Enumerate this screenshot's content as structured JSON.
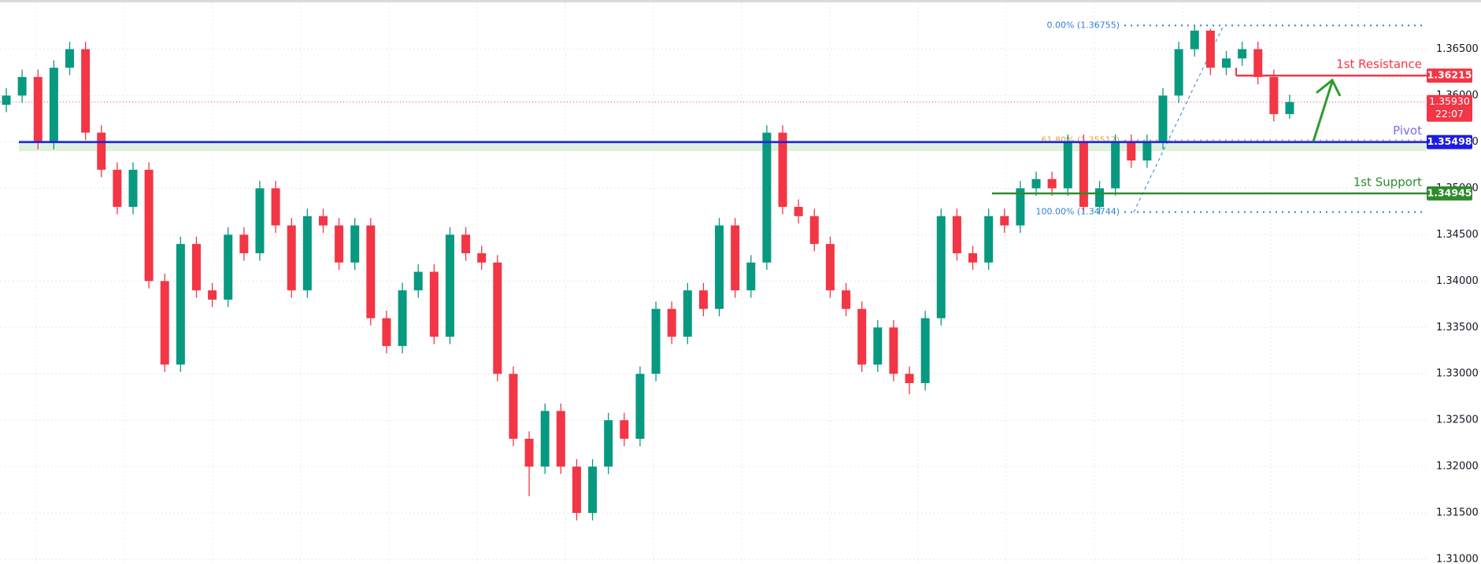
{
  "chart_data": {
    "type": "candlestick",
    "up_color": "#089981",
    "down_color": "#f23645",
    "ylim": [
      1.3095,
      1.3703
    ],
    "yticks": [
      {
        "value": 1.31,
        "label": "1.31000"
      },
      {
        "value": 1.315,
        "label": "1.31500"
      },
      {
        "value": 1.32,
        "label": "1.32000"
      },
      {
        "value": 1.325,
        "label": "1.32500"
      },
      {
        "value": 1.33,
        "label": "1.33000"
      },
      {
        "value": 1.335,
        "label": "1.33500"
      },
      {
        "value": 1.34,
        "label": "1.34000"
      },
      {
        "value": 1.345,
        "label": "1.34500"
      },
      {
        "value": 1.35,
        "label": "1.35000"
      },
      {
        "value": 1.355,
        "label": "1.35500"
      },
      {
        "value": 1.36,
        "label": "1.36000"
      },
      {
        "value": 1.365,
        "label": "1.36500"
      }
    ],
    "grid": true,
    "open": [
      1.359,
      1.36,
      1.362,
      1.355,
      1.363,
      1.365,
      1.356,
      1.352,
      1.348,
      1.352,
      1.34,
      1.331,
      1.344,
      1.339,
      1.338,
      1.345,
      1.343,
      1.35,
      1.346,
      1.339,
      1.347,
      1.346,
      1.342,
      1.346,
      1.336,
      1.333,
      1.339,
      1.341,
      1.334,
      1.345,
      1.343,
      1.342,
      1.33,
      1.323,
      1.32,
      1.326,
      1.32,
      1.315,
      1.32,
      1.325,
      1.323,
      1.33,
      1.337,
      1.334,
      1.339,
      1.337,
      1.346,
      1.339,
      1.342,
      1.356,
      1.348,
      1.347,
      1.344,
      1.339,
      1.337,
      1.331,
      1.335,
      1.33,
      1.329,
      1.336,
      1.347,
      1.343,
      1.342,
      1.347,
      1.346,
      1.35,
      1.351,
      1.35,
      1.355,
      1.348,
      1.35,
      1.355,
      1.353,
      1.355,
      1.36,
      1.365,
      1.367,
      1.363,
      1.364,
      1.365,
      1.362,
      1.358
    ],
    "high": [
      1.3608,
      1.3628,
      1.3628,
      1.3638,
      1.3658,
      1.3658,
      1.3568,
      1.3528,
      1.3528,
      1.3528,
      1.3408,
      1.3448,
      1.3448,
      1.3398,
      1.3458,
      1.3458,
      1.3508,
      1.3508,
      1.3468,
      1.3478,
      1.3478,
      1.3468,
      1.3468,
      1.3468,
      1.3368,
      1.3398,
      1.3418,
      1.3418,
      1.3458,
      1.3458,
      1.3438,
      1.3428,
      1.3308,
      1.3238,
      1.3268,
      1.3268,
      1.3208,
      1.3208,
      1.3258,
      1.3258,
      1.3308,
      1.3378,
      1.3378,
      1.3398,
      1.3398,
      1.3468,
      1.3468,
      1.3428,
      1.3568,
      1.3568,
      1.3488,
      1.3478,
      1.3448,
      1.3398,
      1.3378,
      1.3358,
      1.3358,
      1.3308,
      1.3368,
      1.3478,
      1.3478,
      1.3438,
      1.3478,
      1.3478,
      1.3508,
      1.3518,
      1.3518,
      1.3558,
      1.3558,
      1.3508,
      1.3558,
      1.3558,
      1.3558,
      1.3608,
      1.3658,
      1.36755,
      1.3672,
      1.3648,
      1.3658,
      1.3658,
      1.3628,
      1.3601
    ],
    "low": [
      1.3582,
      1.3592,
      1.3542,
      1.3542,
      1.3622,
      1.3552,
      1.3512,
      1.3472,
      1.3472,
      1.3392,
      1.3302,
      1.3302,
      1.3382,
      1.3372,
      1.3372,
      1.3422,
      1.3422,
      1.3452,
      1.3382,
      1.3382,
      1.3452,
      1.3412,
      1.3412,
      1.3352,
      1.3322,
      1.3322,
      1.3382,
      1.3332,
      1.3332,
      1.3422,
      1.3412,
      1.3292,
      1.3222,
      1.3168,
      1.3192,
      1.3192,
      1.3142,
      1.3142,
      1.3192,
      1.3222,
      1.3222,
      1.3292,
      1.3332,
      1.3332,
      1.3362,
      1.3362,
      1.3382,
      1.3382,
      1.3412,
      1.3472,
      1.3462,
      1.3432,
      1.3382,
      1.3362,
      1.3302,
      1.3302,
      1.3292,
      1.3278,
      1.3282,
      1.3352,
      1.3422,
      1.3412,
      1.3412,
      1.3452,
      1.3452,
      1.3492,
      1.3492,
      1.3492,
      1.34744,
      1.3472,
      1.3492,
      1.3522,
      1.3522,
      1.3542,
      1.3592,
      1.3642,
      1.3622,
      1.3622,
      1.3632,
      1.3612,
      1.3572,
      1.3575
    ],
    "close": [
      1.36,
      1.362,
      1.355,
      1.363,
      1.365,
      1.356,
      1.352,
      1.348,
      1.352,
      1.34,
      1.331,
      1.344,
      1.339,
      1.338,
      1.345,
      1.343,
      1.35,
      1.346,
      1.339,
      1.347,
      1.346,
      1.342,
      1.346,
      1.336,
      1.333,
      1.339,
      1.341,
      1.334,
      1.345,
      1.343,
      1.342,
      1.33,
      1.323,
      1.32,
      1.326,
      1.32,
      1.315,
      1.32,
      1.325,
      1.323,
      1.33,
      1.337,
      1.334,
      1.339,
      1.337,
      1.346,
      1.339,
      1.342,
      1.356,
      1.348,
      1.347,
      1.344,
      1.339,
      1.337,
      1.331,
      1.335,
      1.33,
      1.329,
      1.336,
      1.347,
      1.343,
      1.342,
      1.347,
      1.346,
      1.35,
      1.351,
      1.35,
      1.355,
      1.348,
      1.35,
      1.355,
      1.353,
      1.355,
      1.36,
      1.365,
      1.367,
      1.363,
      1.364,
      1.365,
      1.362,
      1.358,
      1.3593
    ],
    "pivot_zone": [
      1.354,
      1.3552
    ],
    "levels": [
      {
        "name": "1st Resistance",
        "value": 1.36215,
        "value_label": "1.36215",
        "color": "#f23645"
      },
      {
        "name": "Pivot",
        "value": 1.35498,
        "value_label": "1.35498",
        "color": "#1c1ce6",
        "name_color": "#7b6cf0"
      },
      {
        "name": "1st Support",
        "value": 1.34945,
        "value_label": "1.34945",
        "color": "#2e8b2e"
      }
    ],
    "fibonacci": [
      {
        "label": "0.00% (1.36755)",
        "value": 1.36755,
        "color": "#2f7fd8"
      },
      {
        "label": "61.80% (1.35517)",
        "value": 1.35517,
        "color": "#e8a33a"
      },
      {
        "label": "100.00% (1.34744)",
        "value": 1.34744,
        "color": "#2f7fd8"
      }
    ],
    "current_price": {
      "value": 1.3593,
      "value_label": "1.35930",
      "countdown": "22:07",
      "color": "#f23645"
    }
  }
}
